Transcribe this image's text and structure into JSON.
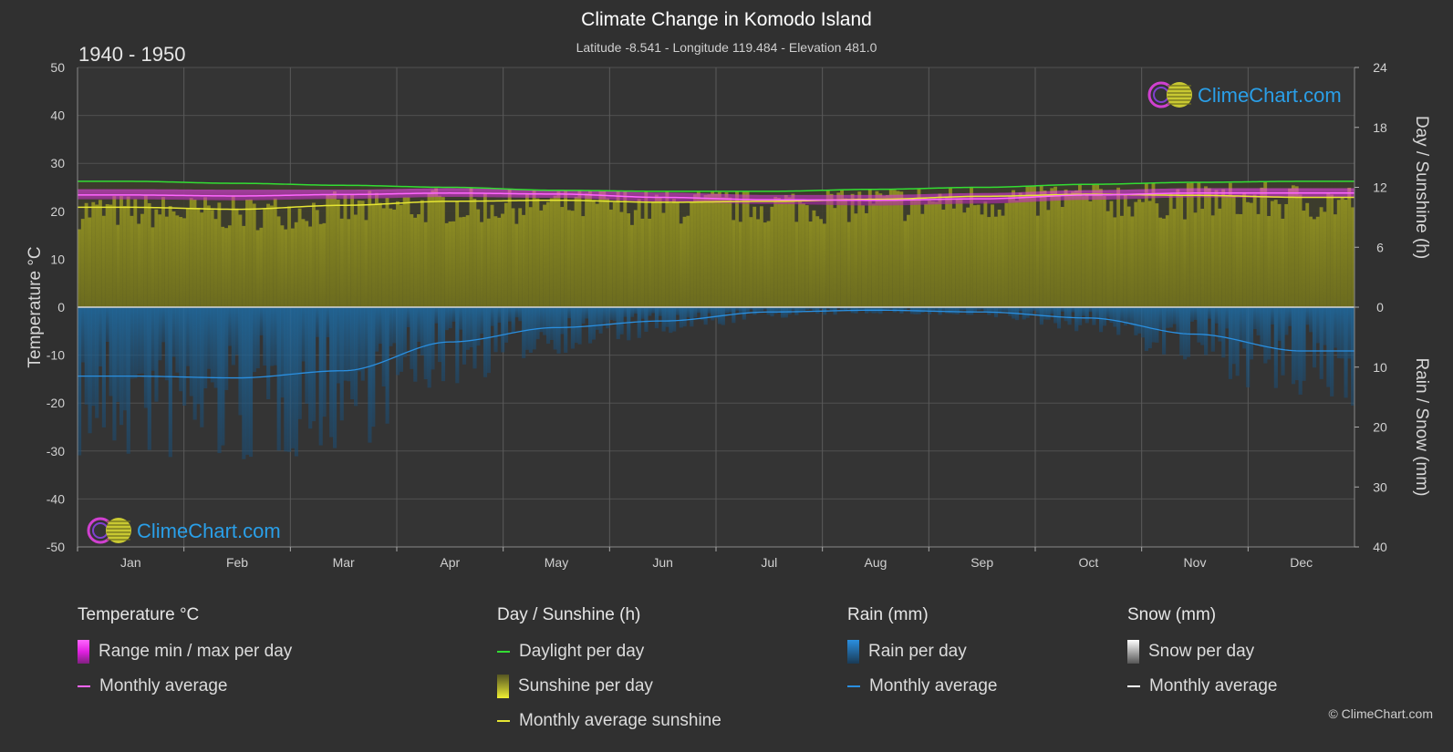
{
  "header": {
    "title": "Climate Change in Komodo Island",
    "subtitle": "Latitude -8.541 - Longitude 119.484 - Elevation 481.0",
    "period": "1940 - 1950"
  },
  "watermark": "ClimeChart.com",
  "copyright": "© ClimeChart.com",
  "colors": {
    "background": "#303030",
    "temp_range": "#e020e0",
    "temp_avg": "#ff66ff",
    "daylight": "#33dd33",
    "sunshine_fill": "#8c8c1e",
    "sunshine_avg": "#e6e633",
    "rain_fill": "#1e6ba0",
    "rain_avg": "#2a8fe0",
    "snow_avg": "#ffffff"
  },
  "chart_data": {
    "type": "area",
    "categories": [
      "Jan",
      "Feb",
      "Mar",
      "Apr",
      "May",
      "Jun",
      "Jul",
      "Aug",
      "Sep",
      "Oct",
      "Nov",
      "Dec"
    ],
    "left_axis": {
      "label": "Temperature °C",
      "range": [
        -50,
        50
      ],
      "ticks": [
        "50",
        "40",
        "30",
        "20",
        "10",
        "0",
        "-10",
        "-20",
        "-30",
        "-40",
        "-50"
      ]
    },
    "right_axis_top": {
      "label": "Day / Sunshine (h)",
      "range": [
        0,
        24
      ],
      "ticks": [
        "24",
        "18",
        "12",
        "6",
        "0"
      ]
    },
    "right_axis_bottom": {
      "label": "Rain / Snow (mm)",
      "range": [
        0,
        40
      ],
      "ticks": [
        "0",
        "10",
        "20",
        "30",
        "40"
      ]
    },
    "series": [
      {
        "name": "Range min / max per day",
        "unit": "°C",
        "min": [
          22.5,
          22.3,
          22.6,
          23.0,
          22.8,
          22.0,
          21.5,
          21.2,
          21.6,
          22.4,
          22.9,
          22.8
        ],
        "max": [
          24.6,
          24.5,
          24.5,
          24.8,
          24.5,
          23.9,
          23.4,
          23.4,
          23.8,
          24.4,
          24.8,
          24.8
        ]
      },
      {
        "name": "Monthly average",
        "group": "Temperature °C",
        "unit": "°C",
        "values": [
          23.4,
          23.2,
          23.5,
          23.8,
          23.6,
          22.9,
          22.4,
          22.3,
          22.6,
          23.4,
          23.8,
          23.8
        ]
      },
      {
        "name": "Daylight per day",
        "unit": "h",
        "values": [
          12.6,
          12.4,
          12.2,
          12.0,
          11.7,
          11.6,
          11.6,
          11.8,
          12.0,
          12.3,
          12.5,
          12.6
        ]
      },
      {
        "name": "Sunshine per day",
        "unit": "h",
        "values": [
          10.0,
          9.8,
          10.2,
          10.6,
          10.7,
          10.5,
          10.6,
          10.8,
          11.1,
          11.3,
          11.2,
          11.0
        ]
      },
      {
        "name": "Monthly average sunshine",
        "unit": "h",
        "values": [
          10.0,
          9.8,
          10.2,
          10.6,
          10.7,
          10.5,
          10.6,
          10.8,
          11.1,
          11.3,
          11.2,
          11.0
        ]
      },
      {
        "name": "Rain per day",
        "unit": "mm",
        "values": [
          11.5,
          11.8,
          10.6,
          5.8,
          3.4,
          2.3,
          0.8,
          0.5,
          0.8,
          1.8,
          4.5,
          7.3
        ]
      },
      {
        "name": "Monthly average",
        "group": "Rain (mm)",
        "unit": "mm",
        "values": [
          11.5,
          11.8,
          10.6,
          5.8,
          3.4,
          2.3,
          0.8,
          0.5,
          0.8,
          1.8,
          4.5,
          7.3
        ]
      },
      {
        "name": "Snow per day",
        "unit": "mm",
        "values": [
          0,
          0,
          0,
          0,
          0,
          0,
          0,
          0,
          0,
          0,
          0,
          0
        ]
      },
      {
        "name": "Monthly average",
        "group": "Snow (mm)",
        "unit": "mm",
        "values": [
          0,
          0,
          0,
          0,
          0,
          0,
          0,
          0,
          0,
          0,
          0,
          0
        ]
      }
    ]
  },
  "legend": {
    "groups": [
      {
        "title": "Temperature °C",
        "items": [
          {
            "label": "Range min / max per day",
            "kind": "block",
            "color": "#e020e0"
          },
          {
            "label": "Monthly average",
            "kind": "line",
            "color": "#ff66ff"
          }
        ]
      },
      {
        "title": "Day / Sunshine (h)",
        "items": [
          {
            "label": "Daylight per day",
            "kind": "line",
            "color": "#33dd33"
          },
          {
            "label": "Sunshine per day",
            "kind": "block",
            "color": "#c8c832"
          },
          {
            "label": "Monthly average sunshine",
            "kind": "line",
            "color": "#e6e633"
          }
        ]
      },
      {
        "title": "Rain (mm)",
        "items": [
          {
            "label": "Rain per day",
            "kind": "block",
            "color": "#1e7fd0"
          },
          {
            "label": "Monthly average",
            "kind": "line",
            "color": "#2a8fe0"
          }
        ]
      },
      {
        "title": "Snow (mm)",
        "items": [
          {
            "label": "Snow per day",
            "kind": "block",
            "color": "#d8d8d8"
          },
          {
            "label": "Monthly average",
            "kind": "line",
            "color": "#ffffff"
          }
        ]
      }
    ]
  }
}
